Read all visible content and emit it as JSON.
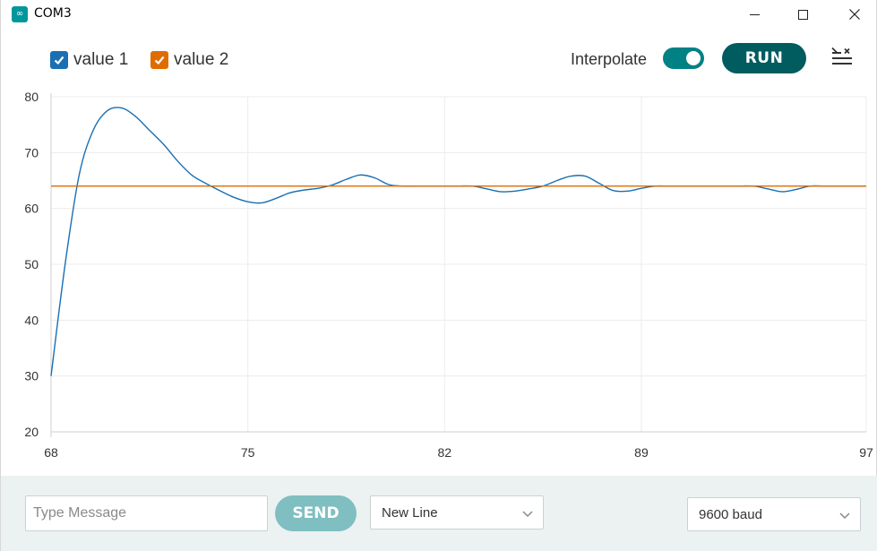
{
  "window": {
    "title": "COM3",
    "app_icon_glyph": "∞"
  },
  "toolbar": {
    "legend": [
      {
        "label": "value 1",
        "color": "#1a6fb3",
        "checked": true
      },
      {
        "label": "value 2",
        "color": "#e06c00",
        "checked": true
      }
    ],
    "interpolate_label": "Interpolate",
    "interpolate_on": true,
    "run_label": "RUN",
    "clear_icon": "clear-list-icon"
  },
  "colors": {
    "accent": "#008184",
    "run_button": "#005c5f",
    "send_button": "#7fbfc1",
    "bottom_bar": "#ecf1f1",
    "series1": "#1a6fb3",
    "series2": "#e06c00",
    "grid": "#ececec"
  },
  "chart_data": {
    "type": "line",
    "xlim": [
      68,
      97
    ],
    "ylim": [
      20,
      80
    ],
    "x_ticks": [
      68,
      75,
      82,
      89,
      97
    ],
    "y_ticks": [
      80,
      70,
      60,
      50,
      40,
      30,
      20
    ],
    "grid": true,
    "series": [
      {
        "name": "value 1",
        "color": "#1a6fb3",
        "x": [
          68,
          68.5,
          69,
          69.5,
          70,
          70.5,
          71,
          71.5,
          72,
          72.5,
          73,
          73.5,
          74,
          74.5,
          75,
          75.5,
          76,
          76.5,
          77,
          77.5,
          78,
          78.5,
          79,
          79.5,
          80,
          80.5,
          81,
          81.5,
          82,
          82.5,
          83,
          83.5,
          84,
          84.5,
          85,
          85.5,
          86,
          86.5,
          87,
          87.5,
          88,
          88.5,
          89,
          89.5,
          90,
          90.5,
          91,
          91.5,
          92,
          92.5,
          93,
          93.5,
          94,
          94.5,
          95,
          95.5,
          96,
          96.5,
          97
        ],
        "y": [
          30,
          50,
          66,
          74,
          77.5,
          78,
          76.5,
          74,
          71.5,
          68.5,
          66,
          64.5,
          63.2,
          62,
          61.2,
          61,
          61.8,
          62.8,
          63.3,
          63.6,
          64.2,
          65.2,
          66,
          65.5,
          64.3,
          64,
          64,
          64,
          64,
          64,
          64,
          63.5,
          63,
          63.1,
          63.5,
          64,
          65,
          65.8,
          65.8,
          64.5,
          63.2,
          63.1,
          63.6,
          64,
          64,
          64,
          64,
          64,
          64,
          64,
          64,
          63.5,
          63,
          63.4,
          64,
          64,
          64,
          64,
          64
        ]
      },
      {
        "name": "value 2",
        "color": "#e06c00",
        "x": [
          68,
          97
        ],
        "y": [
          64,
          64
        ]
      }
    ]
  },
  "bottombar": {
    "message_placeholder": "Type Message",
    "message_value": "",
    "send_label": "SEND",
    "line_ending": "New Line",
    "baud": "9600 baud"
  }
}
